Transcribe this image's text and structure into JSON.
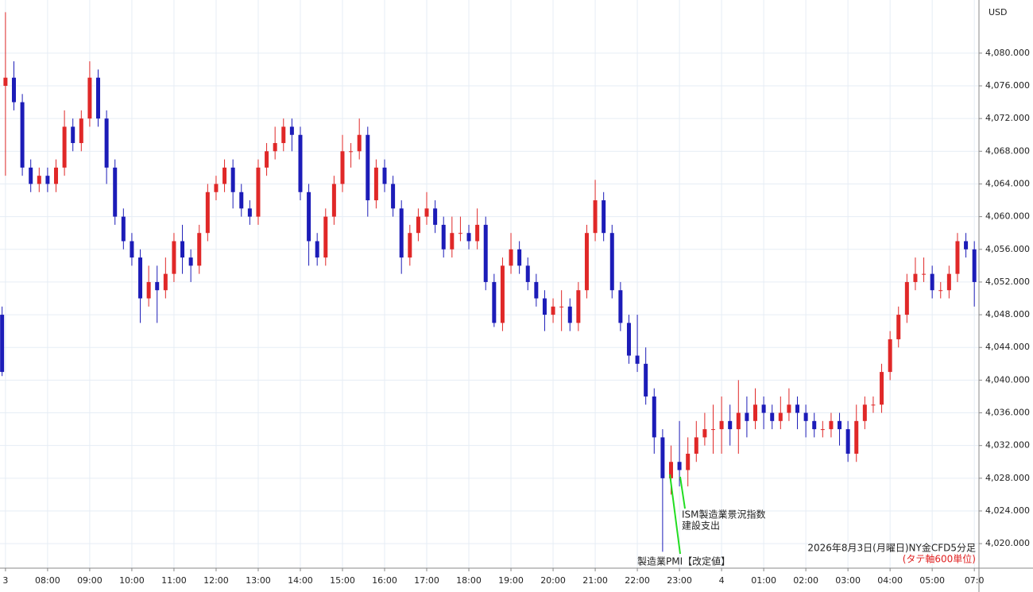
{
  "chart_data": {
    "type": "candlestick",
    "currency": "USD",
    "caption": "2026年8月3日(月曜日)NY金CFD5分足",
    "caption_sub": "(タテ軸600単位)",
    "annotations": [
      "ISM製造業景況指数",
      "建設支出",
      "製造業PMI【改定値】"
    ],
    "up_color": "#e02828",
    "down_color": "#1c1cb8",
    "grid": true,
    "xlim": [
      -0.13,
      23.11
    ],
    "ylim": [
      4017,
      4086.5
    ],
    "xticks": [
      {
        "value": 0,
        "label": "3"
      },
      {
        "value": 1,
        "label": "08:00"
      },
      {
        "value": 2,
        "label": "09:00"
      },
      {
        "value": 3,
        "label": "10:00"
      },
      {
        "value": 4,
        "label": "11:00"
      },
      {
        "value": 5,
        "label": "12:00"
      },
      {
        "value": 6,
        "label": "13:00"
      },
      {
        "value": 7,
        "label": "14:00"
      },
      {
        "value": 8,
        "label": "15:00"
      },
      {
        "value": 9,
        "label": "16:00"
      },
      {
        "value": 10,
        "label": "17:00"
      },
      {
        "value": 11,
        "label": "18:00"
      },
      {
        "value": 12,
        "label": "19:00"
      },
      {
        "value": 13,
        "label": "20:00"
      },
      {
        "value": 14,
        "label": "21:00"
      },
      {
        "value": 15,
        "label": "22:00"
      },
      {
        "value": 16,
        "label": "23:00"
      },
      {
        "value": 17,
        "label": "4"
      },
      {
        "value": 18,
        "label": "01:00"
      },
      {
        "value": 19,
        "label": "02:00"
      },
      {
        "value": 20,
        "label": "03:00"
      },
      {
        "value": 21,
        "label": "04:00"
      },
      {
        "value": 22,
        "label": "05:00"
      },
      {
        "value": 23,
        "label": "07:0"
      }
    ],
    "yticks": [
      {
        "value": 4020,
        "label": "4,020.000"
      },
      {
        "value": 4024,
        "label": "4,024.000"
      },
      {
        "value": 4028,
        "label": "4,028.000"
      },
      {
        "value": 4032,
        "label": "4,032.000"
      },
      {
        "value": 4036,
        "label": "4,036.000"
      },
      {
        "value": 4040,
        "label": "4,040.000"
      },
      {
        "value": 4044,
        "label": "4,044.000"
      },
      {
        "value": 4048,
        "label": "4,048.000"
      },
      {
        "value": 4052,
        "label": "4,052.000"
      },
      {
        "value": 4056,
        "label": "4,056.000"
      },
      {
        "value": 4060,
        "label": "4,060.000"
      },
      {
        "value": 4064,
        "label": "4,064.000"
      },
      {
        "value": 4068,
        "label": "4,068.000"
      },
      {
        "value": 4072,
        "label": "4,072.000"
      },
      {
        "value": 4076,
        "label": "4,076.000"
      },
      {
        "value": 4080,
        "label": "4,080.000"
      }
    ],
    "x": [
      -0.08,
      0,
      0.2,
      0.4,
      0.6,
      0.8,
      1,
      1.2,
      1.4,
      1.6,
      1.8,
      2,
      2.2,
      2.4,
      2.6,
      2.8,
      3,
      3.2,
      3.4,
      3.6,
      3.8,
      4,
      4.2,
      4.4,
      4.6,
      4.8,
      5,
      5.2,
      5.4,
      5.6,
      5.8,
      6,
      6.2,
      6.4,
      6.6,
      6.8,
      7,
      7.2,
      7.4,
      7.6,
      7.8,
      8,
      8.2,
      8.4,
      8.6,
      8.8,
      9,
      9.2,
      9.4,
      9.6,
      9.8,
      10,
      10.2,
      10.4,
      10.6,
      10.8,
      11,
      11.2,
      11.4,
      11.6,
      11.8,
      12,
      12.2,
      12.4,
      12.6,
      12.8,
      13,
      13.2,
      13.4,
      13.6,
      13.8,
      14,
      14.2,
      14.4,
      14.6,
      14.8,
      15,
      15.2,
      15.4,
      15.6,
      15.8,
      16,
      16.2,
      16.4,
      16.6,
      16.8,
      17,
      17.2,
      17.4,
      17.6,
      17.8,
      18,
      18.2,
      18.4,
      18.6,
      18.8,
      19,
      19.2,
      19.4,
      19.6,
      19.8,
      20,
      20.2,
      20.4,
      20.6,
      20.8,
      21,
      21.2,
      21.4,
      21.6,
      21.8,
      22,
      22.2,
      22.4,
      22.6,
      22.8,
      23
    ],
    "open": [
      4048,
      4076,
      4077,
      4074,
      4066,
      4064,
      4065,
      4064,
      4066,
      4071,
      4069,
      4072,
      4077,
      4072,
      4066,
      4060,
      4057,
      4055,
      4050,
      4052,
      4051,
      4053,
      4057,
      4055,
      4054,
      4058,
      4063,
      4064,
      4066,
      4063,
      4061,
      4060,
      4066,
      4068,
      4069,
      4071,
      4070,
      4063,
      4057,
      4055,
      4060,
      4064,
      4068,
      4068,
      4070,
      4062,
      4066,
      4064,
      4061,
      4055,
      4058,
      4060,
      4061,
      4059,
      4056,
      4058,
      4058,
      4057,
      4059,
      4052,
      4047,
      4054,
      4056,
      4054,
      4052,
      4050,
      4048,
      4049,
      4049,
      4047,
      4051,
      4058,
      4062,
      4058,
      4051,
      4047,
      4043,
      4042,
      4038,
      4033,
      4028,
      4030,
      4029,
      4031,
      4033,
      4034,
      4034,
      4035,
      4034,
      4036,
      4035,
      4037,
      4036,
      4035,
      4036,
      4037,
      4036,
      4035,
      4034,
      4034,
      4035,
      4034,
      4031,
      4035,
      4037,
      4037,
      4041,
      4045,
      4048,
      4052,
      4053,
      4053,
      4051,
      4051,
      4053,
      4057,
      4056
    ],
    "close": [
      4041,
      4077,
      4074,
      4066,
      4064,
      4065,
      4064,
      4066,
      4071,
      4069,
      4072,
      4077,
      4072,
      4066,
      4060,
      4057,
      4055,
      4050,
      4052,
      4051,
      4053,
      4057,
      4055,
      4054,
      4058,
      4063,
      4064,
      4066,
      4063,
      4061,
      4060,
      4066,
      4068,
      4069,
      4071,
      4070,
      4063,
      4057,
      4055,
      4060,
      4064,
      4068,
      4068,
      4070,
      4062,
      4066,
      4064,
      4061,
      4055,
      4058,
      4060,
      4061,
      4059,
      4056,
      4058,
      4058,
      4057,
      4059,
      4052,
      4047,
      4054,
      4056,
      4054,
      4052,
      4050,
      4048,
      4049,
      4049,
      4047,
      4051,
      4058,
      4062,
      4058,
      4051,
      4047,
      4043,
      4042,
      4038,
      4033,
      4028,
      4030,
      4029,
      4031,
      4033,
      4034,
      4034,
      4035,
      4034,
      4036,
      4035,
      4037,
      4036,
      4035,
      4036,
      4037,
      4036,
      4035,
      4034,
      4034,
      4035,
      4034,
      4031,
      4035,
      4037,
      4037,
      4041,
      4045,
      4048,
      4052,
      4053,
      4053,
      4051,
      4051,
      4053,
      4057,
      4056,
      4052
    ],
    "high": [
      4049,
      4085,
      4079,
      4075,
      4067,
      4066,
      4066,
      4067,
      4073,
      4072,
      4073,
      4079,
      4078,
      4073,
      4067,
      4061,
      4058,
      4056,
      4054,
      4054,
      4055,
      4058,
      4059,
      4056,
      4059,
      4064,
      4065,
      4067,
      4067,
      4064,
      4062,
      4067,
      4069,
      4071,
      4072,
      4072,
      4071,
      4064,
      4058,
      4061,
      4065,
      4070,
      4069,
      4072,
      4071,
      4067,
      4067,
      4065,
      4062,
      4059,
      4061,
      4063,
      4062,
      4060,
      4060,
      4060,
      4059,
      4061,
      4060,
      4053,
      4055,
      4058,
      4057,
      4055,
      4053,
      4051,
      4050,
      4051,
      4050,
      4052,
      4059,
      4064.5,
      4063,
      4059,
      4052,
      4048,
      4048,
      4044,
      4039,
      4034,
      4032,
      4035,
      4033,
      4035,
      4036,
      4037,
      4038,
      4037,
      4040,
      4038,
      4039,
      4038,
      4037,
      4038,
      4039,
      4038,
      4037,
      4036,
      4035,
      4036,
      4036,
      4035,
      4037,
      4038,
      4038,
      4042,
      4046,
      4049,
      4053,
      4055,
      4055,
      4054,
      4052,
      4054,
      4058,
      4058,
      4057
    ],
    "low": [
      4040.5,
      4065,
      4073,
      4065,
      4063,
      4063,
      4063,
      4063,
      4065,
      4068,
      4068,
      4071,
      4071,
      4064,
      4059,
      4056,
      4054,
      4047,
      4049,
      4047,
      4050,
      4052,
      4053,
      4052,
      4053,
      4057,
      4062,
      4063,
      4061,
      4060,
      4059,
      4059,
      4065,
      4067,
      4068,
      4068,
      4062,
      4054,
      4054,
      4054,
      4059,
      4063,
      4066,
      4067,
      4060,
      4061,
      4063,
      4060,
      4053,
      4054,
      4057,
      4059,
      4058,
      4055,
      4055,
      4057,
      4056,
      4056,
      4051,
      4046.5,
      4046,
      4053,
      4053,
      4051,
      4049,
      4046,
      4047,
      4046,
      4046,
      4046,
      4050,
      4057,
      4057,
      4050,
      4046,
      4042,
      4041,
      4037,
      4031,
      4019,
      4026,
      4027,
      4027,
      4030,
      4032,
      4031,
      4031,
      4032,
      4031,
      4033,
      4034,
      4034,
      4034,
      4034,
      4035,
      4034,
      4033,
      4033,
      4033,
      4033,
      4032,
      4030,
      4030,
      4034,
      4036,
      4036,
      4040,
      4044,
      4047,
      4051,
      4052,
      4050,
      4050,
      4050,
      4052,
      4055,
      4049
    ]
  }
}
